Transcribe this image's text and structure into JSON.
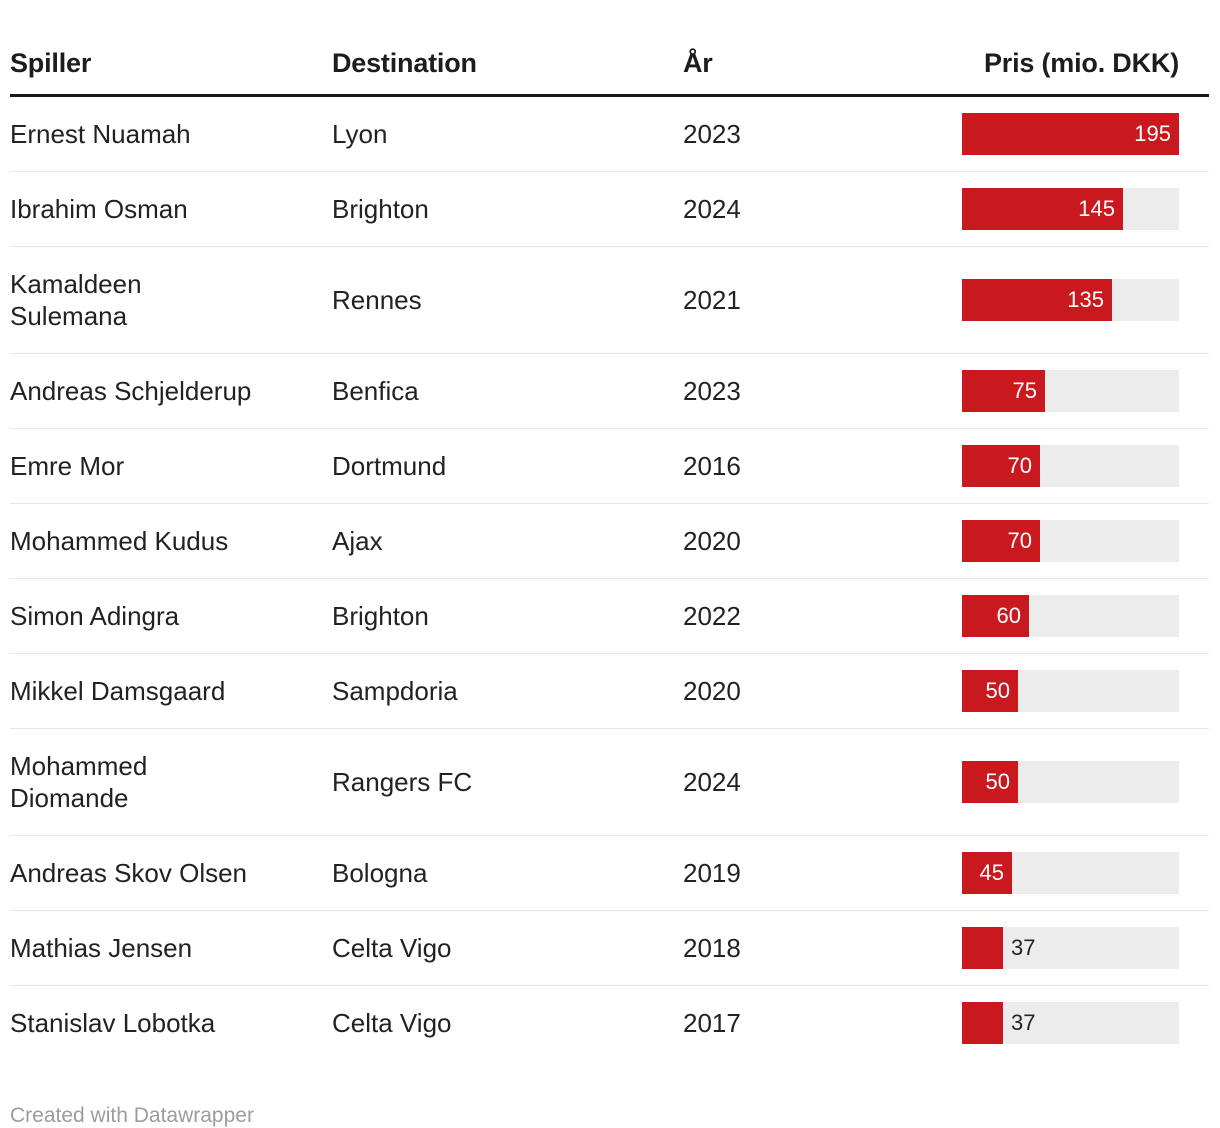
{
  "table": {
    "columns": [
      "Spiller",
      "Destination",
      "År",
      "Pris (mio. DKK)"
    ],
    "rows": [
      {
        "player": "Ernest Nuamah",
        "destination": "Lyon",
        "year": "2023",
        "price": 195
      },
      {
        "player": "Ibrahim Osman",
        "destination": "Brighton",
        "year": "2024",
        "price": 145
      },
      {
        "player": "Kamaldeen\nSulemana",
        "destination": "Rennes",
        "year": "2021",
        "price": 135
      },
      {
        "player": "Andreas Schjelderup",
        "destination": "Benfica",
        "year": "2023",
        "price": 75
      },
      {
        "player": "Emre Mor",
        "destination": "Dortmund",
        "year": "2016",
        "price": 70
      },
      {
        "player": "Mohammed Kudus",
        "destination": "Ajax",
        "year": "2020",
        "price": 70
      },
      {
        "player": "Simon Adingra",
        "destination": "Brighton",
        "year": "2022",
        "price": 60
      },
      {
        "player": "Mikkel Damsgaard",
        "destination": "Sampdoria",
        "year": "2020",
        "price": 50
      },
      {
        "player": "Mohammed\nDiomande",
        "destination": "Rangers FC",
        "year": "2024",
        "price": 50
      },
      {
        "player": "Andreas Skov Olsen",
        "destination": "Bologna",
        "year": "2019",
        "price": 45
      },
      {
        "player": "Mathias Jensen",
        "destination": "Celta Vigo",
        "year": "2018",
        "price": 37
      },
      {
        "player": "Stanislav Lobotka",
        "destination": "Celta Vigo",
        "year": "2017",
        "price": 37
      }
    ]
  },
  "footer": {
    "credit": "Created with Datawrapper"
  },
  "colors": {
    "bar_fill": "#c9191e",
    "bar_track": "#ececec",
    "separator": "#e7e7e7",
    "header_border": "#1a1a1a",
    "header_text": "#1d1d1d",
    "body_text": "#222222",
    "footer_text": "#9c9c9c"
  },
  "chart_data": {
    "type": "table",
    "title": "",
    "columns": [
      "Spiller",
      "Destination",
      "År",
      "Pris (mio. DKK)"
    ],
    "rows": [
      [
        "Ernest Nuamah",
        "Lyon",
        "2023",
        195
      ],
      [
        "Ibrahim Osman",
        "Brighton",
        "2024",
        145
      ],
      [
        "Kamaldeen Sulemana",
        "Rennes",
        "2021",
        135
      ],
      [
        "Andreas Schjelderup",
        "Benfica",
        "2023",
        75
      ],
      [
        "Emre Mor",
        "Dortmund",
        "2016",
        70
      ],
      [
        "Mohammed Kudus",
        "Ajax",
        "2020",
        70
      ],
      [
        "Simon Adingra",
        "Brighton",
        "2022",
        60
      ],
      [
        "Mikkel Damsgaard",
        "Sampdoria",
        "2020",
        50
      ],
      [
        "Mohammed Diomande",
        "Rangers FC",
        "2024",
        50
      ],
      [
        "Andreas Skov Olsen",
        "Bologna",
        "2019",
        45
      ],
      [
        "Mathias Jensen",
        "Celta Vigo",
        "2018",
        37
      ],
      [
        "Stanislav Lobotka",
        "Celta Vigo",
        "2017",
        37
      ]
    ],
    "bar_column": "Pris (mio. DKK)",
    "bar_axis_range": [
      0,
      195
    ],
    "bar_color": "#c9191e",
    "categories": [
      "Ernest Nuamah",
      "Ibrahim Osman",
      "Kamaldeen Sulemana",
      "Andreas Schjelderup",
      "Emre Mor",
      "Mohammed Kudus",
      "Simon Adingra",
      "Mikkel Damsgaard",
      "Mohammed Diomande",
      "Andreas Skov Olsen",
      "Mathias Jensen",
      "Stanislav Lobotka"
    ],
    "values": [
      195,
      145,
      135,
      75,
      70,
      70,
      60,
      50,
      50,
      45,
      37,
      37
    ],
    "footnote": "Created with Datawrapper"
  }
}
